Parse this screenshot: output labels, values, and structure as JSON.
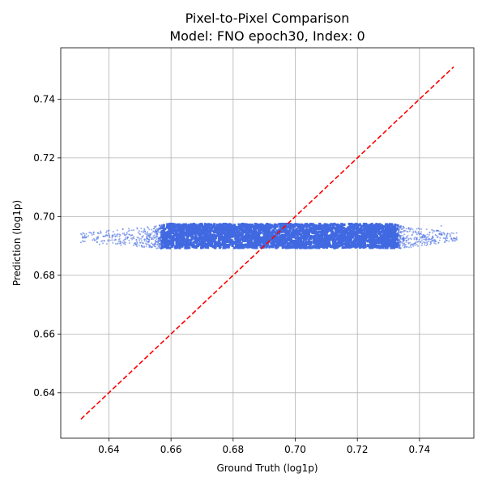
{
  "chart_data": {
    "type": "scatter",
    "title_line1": "Pixel-to-Pixel Comparison",
    "title_line2": "Model: FNO epoch30, Index: 0",
    "xlabel": "Ground Truth (log1p)",
    "ylabel": "Prediction (log1p)",
    "xlim": [
      0.6245,
      0.7575
    ],
    "ylim": [
      0.6245,
      0.7575
    ],
    "xticks": [
      "0.64",
      "0.66",
      "0.68",
      "0.70",
      "0.72",
      "0.74"
    ],
    "xtick_values": [
      0.64,
      0.66,
      0.68,
      0.7,
      0.72,
      0.74
    ],
    "yticks": [
      "0.64",
      "0.66",
      "0.68",
      "0.70",
      "0.72",
      "0.74"
    ],
    "ytick_values": [
      0.64,
      0.66,
      0.68,
      0.7,
      0.72,
      0.74
    ],
    "grid": true,
    "scatter_color": "#4169e1",
    "reference_line": {
      "x": [
        0.631,
        0.751
      ],
      "y": [
        0.631,
        0.751
      ],
      "color": "#ff0000",
      "style": "dashed"
    },
    "point_cloud": {
      "core_x_range": [
        0.657,
        0.733
      ],
      "core_y_range": [
        0.6893,
        0.6975
      ],
      "tail_x_range": [
        0.631,
        0.752
      ],
      "y_center": 0.693
    },
    "outliers": [
      {
        "x": 0.631,
        "y": 0.6912
      },
      {
        "x": 0.637,
        "y": 0.6905
      },
      {
        "x": 0.641,
        "y": 0.692
      },
      {
        "x": 0.747,
        "y": 0.6968
      },
      {
        "x": 0.752,
        "y": 0.6921
      },
      {
        "x": 0.744,
        "y": 0.6955
      },
      {
        "x": 0.646,
        "y": 0.693
      }
    ]
  }
}
